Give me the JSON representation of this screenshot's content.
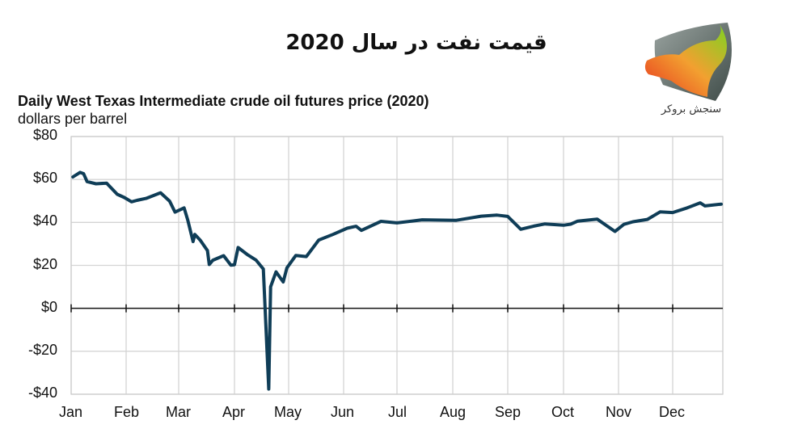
{
  "header": {
    "persian_title": "قیمت نفت در سال 2020",
    "logo_text": "سنجش بروکر"
  },
  "chart_data": {
    "type": "line",
    "title": "Daily West Texas Intermediate crude oil futures price (2020)",
    "subtitle": "dollars per barrel",
    "xlabel": "",
    "ylabel": "dollars per barrel",
    "ylim": [
      -40,
      80
    ],
    "y_ticks": [
      "$80",
      "$60",
      "$40",
      "$20",
      "$0",
      "-$20",
      "-$40"
    ],
    "categories": [
      "Jan",
      "Feb",
      "Mar",
      "Apr",
      "May",
      "Jun",
      "Jul",
      "Aug",
      "Sep",
      "Oct",
      "Nov",
      "Dec"
    ],
    "grid": true,
    "legend": "none",
    "line_color": "#0f3d57",
    "series": [
      {
        "name": "WTI crude oil futures price",
        "points": [
          {
            "date": "Jan 2",
            "value": 61.2
          },
          {
            "date": "Jan 6",
            "value": 63.3
          },
          {
            "date": "Jan 8",
            "value": 62.7
          },
          {
            "date": "Jan 10",
            "value": 59.0
          },
          {
            "date": "Jan 15",
            "value": 58.0
          },
          {
            "date": "Jan 21",
            "value": 58.3
          },
          {
            "date": "Jan 27",
            "value": 53.1
          },
          {
            "date": "Jan 31",
            "value": 51.6
          },
          {
            "date": "Feb 4",
            "value": 49.6
          },
          {
            "date": "Feb 7",
            "value": 50.3
          },
          {
            "date": "Feb 12",
            "value": 51.2
          },
          {
            "date": "Feb 20",
            "value": 53.8
          },
          {
            "date": "Feb 25",
            "value": 49.9
          },
          {
            "date": "Feb 28",
            "value": 44.8
          },
          {
            "date": "Mar 4",
            "value": 46.8
          },
          {
            "date": "Mar 6",
            "value": 41.3
          },
          {
            "date": "Mar 9",
            "value": 31.1
          },
          {
            "date": "Mar 10",
            "value": 34.4
          },
          {
            "date": "Mar 13",
            "value": 31.7
          },
          {
            "date": "Mar 17",
            "value": 26.9
          },
          {
            "date": "Mar 18",
            "value": 20.4
          },
          {
            "date": "Mar 20",
            "value": 22.4
          },
          {
            "date": "Mar 26",
            "value": 24.5
          },
          {
            "date": "Mar 30",
            "value": 20.1
          },
          {
            "date": "Apr 1",
            "value": 20.3
          },
          {
            "date": "Apr 3",
            "value": 28.3
          },
          {
            "date": "Apr 8",
            "value": 25.1
          },
          {
            "date": "Apr 13",
            "value": 22.4
          },
          {
            "date": "Apr 17",
            "value": 18.3
          },
          {
            "date": "Apr 20",
            "value": -37.6
          },
          {
            "date": "Apr 21",
            "value": 10.0
          },
          {
            "date": "Apr 24",
            "value": 17.0
          },
          {
            "date": "Apr 28",
            "value": 12.3
          },
          {
            "date": "Apr 30",
            "value": 18.8
          },
          {
            "date": "May 5",
            "value": 24.6
          },
          {
            "date": "May 11",
            "value": 24.1
          },
          {
            "date": "May 18",
            "value": 31.8
          },
          {
            "date": "May 26",
            "value": 34.4
          },
          {
            "date": "Jun 3",
            "value": 37.3
          },
          {
            "date": "Jun 8",
            "value": 38.2
          },
          {
            "date": "Jun 11",
            "value": 36.3
          },
          {
            "date": "Jun 22",
            "value": 40.5
          },
          {
            "date": "Jul 1",
            "value": 39.8
          },
          {
            "date": "Jul 15",
            "value": 41.2
          },
          {
            "date": "Aug 3",
            "value": 41.0
          },
          {
            "date": "Aug 17",
            "value": 42.9
          },
          {
            "date": "Aug 26",
            "value": 43.4
          },
          {
            "date": "Sep 1",
            "value": 42.8
          },
          {
            "date": "Sep 8",
            "value": 36.8
          },
          {
            "date": "Sep 15",
            "value": 38.3
          },
          {
            "date": "Sep 21",
            "value": 39.3
          },
          {
            "date": "Oct 1",
            "value": 38.7
          },
          {
            "date": "Oct 5",
            "value": 39.2
          },
          {
            "date": "Oct 9",
            "value": 40.6
          },
          {
            "date": "Oct 20",
            "value": 41.5
          },
          {
            "date": "Oct 30",
            "value": 35.8
          },
          {
            "date": "Nov 4",
            "value": 39.1
          },
          {
            "date": "Nov 9",
            "value": 40.3
          },
          {
            "date": "Nov 17",
            "value": 41.4
          },
          {
            "date": "Nov 24",
            "value": 44.9
          },
          {
            "date": "Dec 1",
            "value": 44.6
          },
          {
            "date": "Dec 10",
            "value": 46.8
          },
          {
            "date": "Dec 18",
            "value": 49.1
          },
          {
            "date": "Dec 21",
            "value": 47.7
          },
          {
            "date": "Dec 31",
            "value": 48.5
          }
        ]
      }
    ]
  }
}
